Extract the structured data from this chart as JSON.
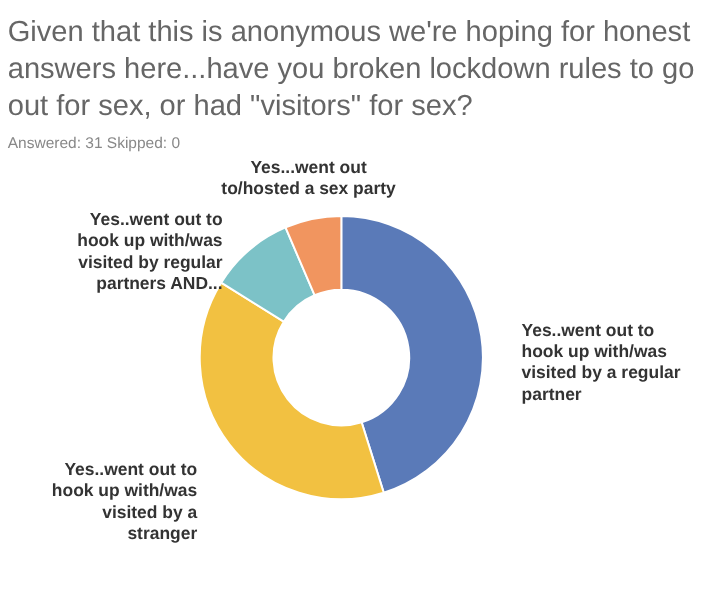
{
  "chart_data": {
    "type": "donut",
    "title": "Given that this is anonymous we're hoping for honest answers here...have you broken lockdown rules to go out for sex, or had \"visitors\" for sex?",
    "subtitle": "Answered: 31    Skipped: 0",
    "categories": [
      "Yes..went out to hook up with/was visited by a regular partner",
      "Yes..went out to hook up with/was visited by a stranger",
      "Yes..went out to hook up with/was visited by regular partners AND...",
      "Yes...went out to/hosted a sex party"
    ],
    "values": [
      45.16,
      38.71,
      9.68,
      6.45
    ],
    "colors": [
      "#5a7ab8",
      "#f2c141",
      "#7cc2c7",
      "#f1955f"
    ]
  }
}
